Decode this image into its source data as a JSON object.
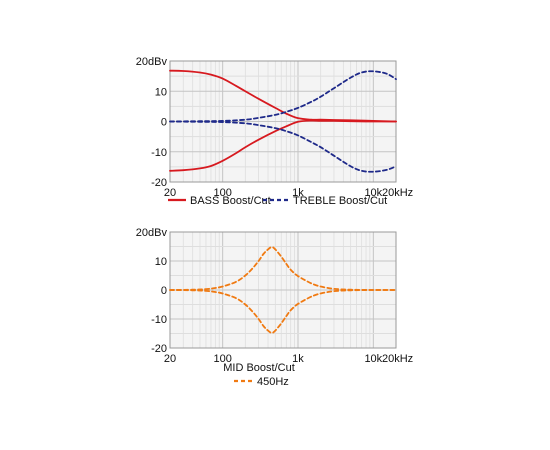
{
  "chart_data": [
    {
      "type": "line",
      "x_scale": "log",
      "xlim": [
        20,
        20000
      ],
      "ylim": [
        -20,
        20
      ],
      "grid": true,
      "y_ticks": [
        {
          "value": 20,
          "label": "20dBv"
        },
        {
          "value": 10,
          "label": "10"
        },
        {
          "value": 0,
          "label": "0"
        },
        {
          "value": -10,
          "label": "-10"
        },
        {
          "value": -20,
          "label": "-20"
        }
      ],
      "x_ticks": [
        {
          "value": 20,
          "label": "20"
        },
        {
          "value": 100,
          "label": "100"
        },
        {
          "value": 1000,
          "label": "1k"
        },
        {
          "value": 10000,
          "label": "10k"
        },
        {
          "value": 20000,
          "label": "20kHz"
        }
      ],
      "legend": [
        "BASS Boost/Cut",
        "TREBLE Boost/Cut"
      ],
      "legend_position": "bottom",
      "series": [
        {
          "name": "BASS Boost/Cut",
          "style": "solid",
          "color": "#d7191f",
          "x": [
            20,
            30,
            50,
            70,
            100,
            150,
            200,
            300,
            500,
            700,
            1000,
            1500,
            2000,
            3000,
            5000,
            10000,
            20000
          ],
          "y": [
            16.8,
            16.7,
            16.2,
            15.5,
            14.2,
            11.8,
            10.0,
            7.5,
            4.5,
            2.6,
            1.1,
            0.6,
            0.6,
            0.5,
            0.4,
            0.2,
            0.0
          ]
        },
        {
          "name": "BASS Boost/Cut",
          "style": "solid",
          "color": "#d7191f",
          "x": [
            20,
            30,
            50,
            70,
            100,
            150,
            200,
            300,
            500,
            700,
            1000,
            1500,
            2000,
            3000,
            5000,
            10000,
            20000
          ],
          "y": [
            -16.3,
            -16.1,
            -15.5,
            -14.7,
            -13.0,
            -10.5,
            -8.5,
            -6.0,
            -3.2,
            -1.6,
            -0.1,
            0.3,
            0.2,
            0.2,
            0.1,
            0.0,
            0.0
          ]
        },
        {
          "name": "TREBLE Boost/Cut",
          "style": "dashed",
          "color": "#1f2a8a",
          "x": [
            20,
            50,
            100,
            200,
            300,
            500,
            700,
            1000,
            1500,
            2000,
            3000,
            5000,
            7000,
            10000,
            15000,
            20000
          ],
          "y": [
            0.0,
            0.1,
            0.2,
            0.6,
            1.2,
            2.2,
            3.2,
            4.5,
            6.5,
            8.2,
            11.0,
            14.5,
            16.2,
            16.6,
            15.8,
            14.0
          ]
        },
        {
          "name": "TREBLE Boost/Cut",
          "style": "dashed",
          "color": "#1f2a8a",
          "x": [
            20,
            50,
            100,
            200,
            300,
            500,
            700,
            1000,
            1500,
            2000,
            3000,
            5000,
            7000,
            10000,
            15000,
            20000
          ],
          "y": [
            0.0,
            -0.1,
            -0.2,
            -0.6,
            -1.2,
            -2.2,
            -3.2,
            -4.6,
            -6.8,
            -8.5,
            -11.3,
            -14.8,
            -16.3,
            -16.6,
            -16.0,
            -14.8
          ]
        }
      ]
    },
    {
      "type": "line",
      "x_scale": "log",
      "xlim": [
        20,
        20000
      ],
      "ylim": [
        -20,
        20
      ],
      "grid": true,
      "y_ticks": [
        {
          "value": 20,
          "label": "20dBv"
        },
        {
          "value": 10,
          "label": "10"
        },
        {
          "value": 0,
          "label": "0"
        },
        {
          "value": -10,
          "label": "-10"
        },
        {
          "value": -20,
          "label": "-20"
        }
      ],
      "x_ticks": [
        {
          "value": 20,
          "label": "20"
        },
        {
          "value": 100,
          "label": "100"
        },
        {
          "value": 1000,
          "label": "1k"
        },
        {
          "value": 10000,
          "label": "10k"
        },
        {
          "value": 20000,
          "label": "20kHz"
        }
      ],
      "legend_title": "MID Boost/Cut",
      "legend": [
        "450Hz"
      ],
      "legend_position": "bottom",
      "series": [
        {
          "name": "450Hz",
          "style": "dashed",
          "color": "#f07a12",
          "x": [
            20,
            40,
            60,
            80,
            100,
            150,
            200,
            250,
            300,
            350,
            400,
            450,
            500,
            600,
            700,
            800,
            1000,
            1500,
            2000,
            3000,
            5000,
            10000,
            20000
          ],
          "y": [
            0.0,
            0.1,
            0.3,
            0.7,
            1.2,
            2.8,
            5.0,
            7.5,
            10.0,
            12.5,
            14.0,
            14.8,
            14.0,
            11.5,
            9.0,
            7.0,
            4.8,
            2.3,
            1.2,
            0.4,
            0.1,
            0.0,
            0.0
          ]
        },
        {
          "name": "450Hz",
          "style": "dashed",
          "color": "#f07a12",
          "x": [
            20,
            40,
            60,
            80,
            100,
            150,
            200,
            250,
            300,
            350,
            400,
            450,
            500,
            600,
            700,
            800,
            1000,
            1500,
            2000,
            3000,
            5000,
            10000,
            20000
          ],
          "y": [
            0.0,
            -0.1,
            -0.3,
            -0.7,
            -1.2,
            -2.8,
            -5.0,
            -7.5,
            -10.0,
            -12.5,
            -14.0,
            -14.8,
            -14.0,
            -11.5,
            -9.0,
            -7.0,
            -4.8,
            -2.3,
            -1.2,
            -0.4,
            -0.1,
            0.0,
            0.0
          ]
        }
      ]
    }
  ]
}
